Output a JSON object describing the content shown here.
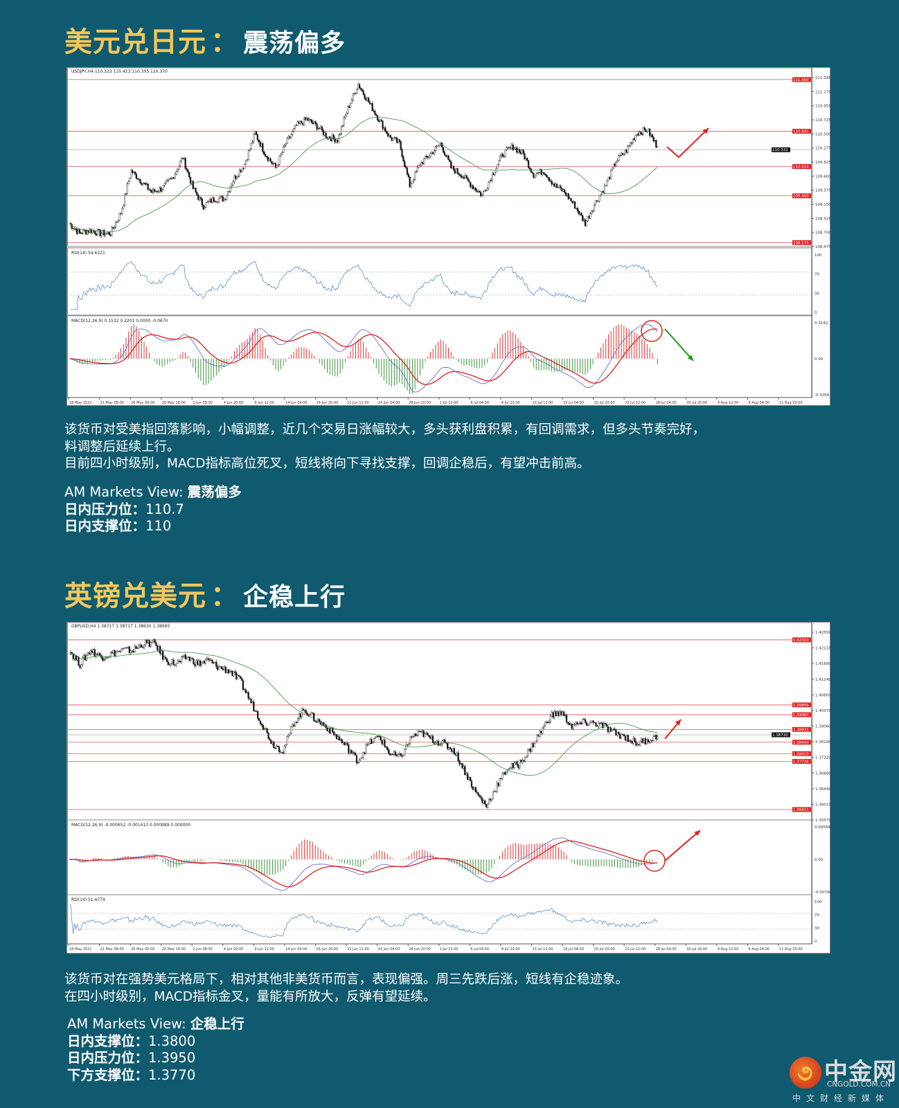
{
  "sections": [
    {
      "pair": "美元兑日元",
      "colon": "：",
      "view": "震荡偏多",
      "paragraph": [
        "该货币对受美指回落影响，小幅调整，近几个交易日涨幅较大，多头获利盘积累，有回调需求，但多头节奏完好，",
        "料调整后延续上行。",
        "目前四小时级别，MACD指标高位死叉，短线将向下寻找支撑，回调企稳后，有望冲击前高。"
      ],
      "view_line": {
        "label": "AM Markets View: ",
        "value": "震荡偏多"
      },
      "levels": [
        {
          "label": "日内压力位：",
          "value": "110.7"
        },
        {
          "label": "日内支撑位：",
          "value": "110"
        }
      ]
    },
    {
      "pair": "英镑兑美元",
      "colon": "：",
      "view": "企稳上行",
      "paragraph": [
        "该货币对在强势美元格局下，相对其他非美货币而言，表现偏强。周三先跌后涨，短线有企稳迹象。",
        "在四小时级别，MACD指标金叉，量能有所放大，反弹有望延续。"
      ],
      "view_line": {
        "label": "AM Markets View: ",
        "value": "企稳上行"
      },
      "levels": [
        {
          "label": "日内支撑位：",
          "value": "1.3800"
        },
        {
          "label": "日内压力位：",
          "value": "1.3950"
        },
        {
          "label": "下方支撑位：",
          "value": "1.3770"
        }
      ]
    }
  ],
  "logo": {
    "cn": "中金网",
    "en": "CNGOLD.COM.CN",
    "sub": "中文财经新媒体"
  },
  "colors": {
    "background": "#0f5a6e",
    "title_accent": "#f3c75a",
    "level_line": "#d9534f",
    "bull": "#d62020",
    "bear": "#2a8a2a",
    "ma": "#3a8a3a",
    "rsi": "#4a7fc0"
  },
  "chart_data": [
    {
      "type": "candlestick",
      "symbol_header": "USDJPY,H4  110.323 110.423 110.305 110.370",
      "ylim": [
        108.5,
        111.75
      ],
      "y_ticks": [
        "111.395",
        "111.170",
        "110.950",
        "110.725",
        "110.500",
        "110.275",
        "109.825",
        "109.600",
        "109.375",
        "109.150",
        "108.925",
        "108.700",
        "108.475"
      ],
      "price_levels": [
        "111.660",
        "110.681",
        "110.014",
        "109.460",
        "108.574"
      ],
      "current_price": "110.332",
      "closes": [
        108.94,
        108.75,
        108.81,
        108.75,
        108.75,
        109.14,
        109.93,
        109.73,
        109.53,
        109.6,
        109.8,
        110.19,
        109.6,
        109.27,
        109.4,
        109.4,
        109.8,
        110.06,
        110.65,
        110.25,
        109.99,
        110.45,
        110.78,
        110.91,
        110.78,
        110.58,
        110.52,
        111.11,
        111.57,
        111.24,
        110.91,
        110.58,
        110.45,
        109.66,
        110.06,
        110.25,
        110.45,
        109.99,
        109.86,
        109.66,
        109.47,
        109.86,
        110.25,
        110.39,
        110.25,
        109.86,
        109.93,
        109.66,
        109.53,
        109.27,
        108.94,
        109.34,
        109.66,
        110.12,
        110.32,
        110.65,
        110.71,
        110.39
      ],
      "indicators": [
        {
          "name": "RSI",
          "header": "RSI(14) 54.6121",
          "axis": [
            "100",
            "70",
            "30",
            "0"
          ]
        },
        {
          "name": "MACD",
          "header": "MACD(12,26,9) 0.1532 0.2201 0.0000 -0.0670",
          "axis": [
            "0.3142",
            "0.00",
            "-0.3269"
          ]
        }
      ],
      "x_tick_labels": [
        "18 May 2021",
        "21 May 08:00",
        "26 May 00:00",
        "28 May 16:00",
        "2 Jun 08:00",
        "4 Jun 20:00",
        "9 Jun 12:00",
        "14 Jun 04:00",
        "16 Jun 20:00",
        "21 Jun 12:00",
        "24 Jun 04:00",
        "28 Jun 20:00",
        "1 Jul 12:00",
        "6 Jul 04:00",
        "8 Jul 20:00",
        "13 Jul 12:00",
        "16 Jul 04:00",
        "20 Jul 20:00",
        "23 Jul 12:00",
        "28 Jul 04:00",
        "30 Jul 20:00",
        "4 Aug 12:00",
        "9 Aug 04:00",
        "11 Aug 20:00"
      ]
    },
    {
      "type": "candlestick",
      "symbol_header": "GBPUSD,H4  1.38717 1.38717 1.38630 1.38695",
      "ylim": [
        1.3552,
        1.427
      ],
      "y_ticks": [
        "1.42550",
        "1.42110",
        "1.41680",
        "1.41240",
        "1.40800",
        "1.40370",
        "1.39060",
        "1.38190",
        "1.37320",
        "1.36880",
        "1.36440",
        "1.36010",
        "1.35570"
      ],
      "price_levels": [
        "1.42310",
        "1.39856",
        "1.39487",
        "1.38931",
        "1.38450",
        "1.38019",
        "1.37726",
        "1.35911"
      ],
      "current_price": "1.38730",
      "closes": [
        1.4192,
        1.414,
        1.4192,
        1.4166,
        1.4179,
        1.4192,
        1.4192,
        1.4218,
        1.4218,
        1.4153,
        1.414,
        1.4166,
        1.414,
        1.4153,
        1.4127,
        1.4114,
        1.4074,
        1.3996,
        1.3918,
        1.384,
        1.3813,
        1.3918,
        1.397,
        1.3931,
        1.3905,
        1.3866,
        1.3826,
        1.3774,
        1.384,
        1.3866,
        1.38,
        1.3787,
        1.3866,
        1.3879,
        1.3853,
        1.384,
        1.3813,
        1.3735,
        1.3657,
        1.3605,
        1.3683,
        1.3748,
        1.3761,
        1.3813,
        1.3879,
        1.3944,
        1.3957,
        1.3905,
        1.3918,
        1.3918,
        1.3905,
        1.3879,
        1.3866,
        1.384,
        1.3853,
        1.3866
      ],
      "indicators": [
        {
          "name": "MACD",
          "header": "MACD(12,26,9) -0.000652 -0.001413 0.000989 0.000000",
          "axis": [
            "0.00584",
            "0.00",
            "-0.007968"
          ]
        },
        {
          "name": "RSI",
          "header": "RSI(14) 51.4779",
          "axis": [
            "100",
            "70",
            "30",
            "0"
          ]
        }
      ],
      "x_tick_labels": [
        "18 May 2021",
        "21 May 08:00",
        "26 May 00:00",
        "28 May 16:00",
        "2 Jun 08:00",
        "4 Jun 20:00",
        "9 Jun 12:00",
        "14 Jun 04:00",
        "16 Jun 20:00",
        "21 Jun 12:00",
        "24 Jun 04:00",
        "28 Jun 20:00",
        "1 Jul 12:00",
        "6 Jul 04:00",
        "8 Jul 20:00",
        "13 Jul 12:00",
        "16 Jul 04:00",
        "20 Jul 20:00",
        "23 Jul 12:00",
        "28 Jul 04:00",
        "30 Jul 20:00",
        "4 Aug 12:00",
        "9 Aug 04:00",
        "11 Aug 20:00"
      ]
    }
  ]
}
